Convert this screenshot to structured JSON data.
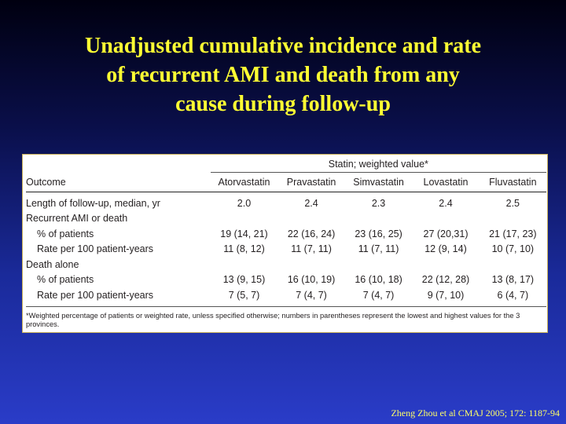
{
  "slide": {
    "title_lines": [
      "Unadjusted cumulative incidence and rate",
      "of recurrent AMI and death from any",
      "cause during follow-up"
    ],
    "citation": "Zheng Zhou et al CMAJ 2005; 172: 1187-94"
  },
  "table": {
    "spanner": "Statin; weighted value*",
    "outcome_header": "Outcome",
    "columns": [
      "Atorvastatin",
      "Pravastatin",
      "Simvastatin",
      "Lovastatin",
      "Fluvastatin"
    ],
    "rows": [
      {
        "label": "Length of follow-up, median, yr",
        "values": [
          "2.0",
          "2.4",
          "2.3",
          "2.4",
          "2.5"
        ]
      },
      {
        "label": "Recurrent AMI or death",
        "values": [
          "",
          "",
          "",
          "",
          ""
        ]
      },
      {
        "label": "% of patients",
        "values": [
          "19 (14, 21)",
          "22 (16, 24)",
          "23 (16, 25)",
          "27 (20,31)",
          "21 (17, 23)"
        ]
      },
      {
        "label": "Rate per 100 patient-years",
        "values": [
          "11  (8, 12)",
          "11  (7, 11)",
          "11  (7, 11)",
          "12   (9, 14)",
          "10   (7, 10)"
        ]
      },
      {
        "label": "Death alone",
        "values": [
          "",
          "",
          "",
          "",
          ""
        ]
      },
      {
        "label": "% of patients",
        "values": [
          "13  (9, 15)",
          "16 (10, 19)",
          "16 (10, 18)",
          "22 (12, 28)",
          "13   (8, 17)"
        ]
      },
      {
        "label": "Rate per 100 patient-years",
        "values": [
          "7    (5, 7)",
          "7   (4, 7)",
          "7   (4, 7)",
          "9   (7, 10)",
          "6   (4, 7)"
        ]
      }
    ],
    "footnote": "*Weighted percentage of patients or weighted rate, unless specified otherwise; numbers in parentheses represent the lowest and highest values for the 3 provinces."
  }
}
